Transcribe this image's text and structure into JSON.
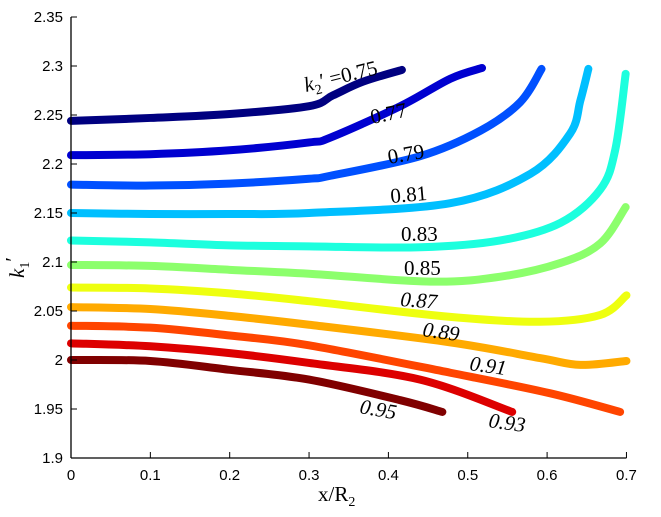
{
  "chart_data": {
    "type": "line",
    "title": "",
    "xlabel": {
      "main": "x/R",
      "sub": "2"
    },
    "ylabel": {
      "main": "k",
      "sub": "1",
      "prime": "′"
    },
    "xlim": [
      0,
      0.7
    ],
    "ylim": [
      1.9,
      2.35
    ],
    "xticks": [
      "0",
      "0.1",
      "0.2",
      "0.3",
      "0.4",
      "0.5",
      "0.6",
      "0.7"
    ],
    "yticks": [
      "1.9",
      "1.95",
      "2",
      "2.05",
      "2.1",
      "2.15",
      "2.2",
      "2.25",
      "2.3",
      "2.35"
    ],
    "grid": false,
    "legend": "none",
    "first_label_prefix": {
      "k": "k",
      "sub": "2",
      "prime": "′ ="
    },
    "series": [
      {
        "name": "0.75",
        "color": "#000080",
        "x": [
          0,
          0.1,
          0.2,
          0.3,
          0.33,
          0.368,
          0.417
        ],
        "y": [
          2.244,
          2.247,
          2.251,
          2.259,
          2.27,
          2.284,
          2.296
        ]
      },
      {
        "name": "0.77",
        "color": "#0000D0",
        "x": [
          0,
          0.1,
          0.2,
          0.3,
          0.327,
          0.415,
          0.478,
          0.518
        ],
        "y": [
          2.209,
          2.21,
          2.214,
          2.222,
          2.227,
          2.259,
          2.287,
          2.298
        ]
      },
      {
        "name": "0.79",
        "color": "#0050FF",
        "x": [
          0,
          0.1,
          0.2,
          0.3,
          0.327,
          0.44,
          0.516,
          0.566,
          0.593
        ],
        "y": [
          2.179,
          2.178,
          2.18,
          2.185,
          2.188,
          2.208,
          2.234,
          2.263,
          2.297
        ]
      },
      {
        "name": "0.81",
        "color": "#00BFFF",
        "x": [
          0,
          0.1,
          0.2,
          0.3,
          0.478,
          0.579,
          0.629,
          0.642,
          0.652
        ],
        "y": [
          2.15,
          2.149,
          2.149,
          2.15,
          2.16,
          2.19,
          2.231,
          2.265,
          2.297
        ]
      },
      {
        "name": "0.83",
        "color": "#1CFFDE",
        "x": [
          0,
          0.1,
          0.2,
          0.3,
          0.44,
          0.541,
          0.617,
          0.667,
          0.686,
          0.699
        ],
        "y": [
          2.122,
          2.12,
          2.117,
          2.116,
          2.115,
          2.122,
          2.14,
          2.174,
          2.215,
          2.292
        ]
      },
      {
        "name": "0.85",
        "color": "#8CFF6C",
        "x": [
          0,
          0.1,
          0.2,
          0.3,
          0.453,
          0.541,
          0.617,
          0.667,
          0.699
        ],
        "y": [
          2.097,
          2.096,
          2.092,
          2.088,
          2.08,
          2.085,
          2.099,
          2.119,
          2.156
        ]
      },
      {
        "name": "0.87",
        "color": "#EEFF10",
        "x": [
          0,
          0.1,
          0.2,
          0.3,
          0.478,
          0.591,
          0.667,
          0.7
        ],
        "y": [
          2.074,
          2.073,
          2.068,
          2.06,
          2.044,
          2.039,
          2.046,
          2.066
        ]
      },
      {
        "name": "0.89",
        "color": "#FFAA00",
        "x": [
          0,
          0.1,
          0.2,
          0.3,
          0.478,
          0.591,
          0.642,
          0.7
        ],
        "y": [
          2.054,
          2.052,
          2.045,
          2.036,
          2.018,
          2.002,
          1.995,
          1.999
        ]
      },
      {
        "name": "0.91",
        "color": "#FF4500",
        "x": [
          0,
          0.1,
          0.2,
          0.3,
          0.478,
          0.604,
          0.692
        ],
        "y": [
          2.035,
          2.033,
          2.025,
          2.015,
          1.987,
          1.966,
          1.947
        ]
      },
      {
        "name": "0.93",
        "color": "#DD0000",
        "x": [
          0,
          0.1,
          0.2,
          0.3,
          0.44,
          0.556
        ],
        "y": [
          2.017,
          2.014,
          2.007,
          1.997,
          1.98,
          1.947
        ]
      },
      {
        "name": "0.95",
        "color": "#800000",
        "x": [
          0,
          0.1,
          0.2,
          0.3,
          0.415,
          0.468
        ],
        "y": [
          2.0,
          1.999,
          1.99,
          1.98,
          1.959,
          1.947
        ]
      }
    ]
  }
}
